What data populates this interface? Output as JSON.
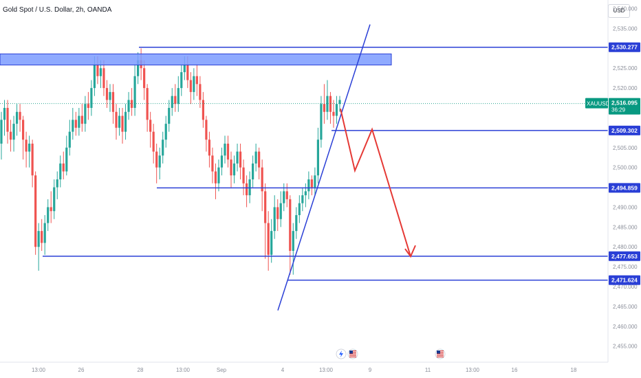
{
  "header": {
    "title": "Gold Spot / U.S. Dollar, 2h, OANDA",
    "currency_button": "USD"
  },
  "colors": {
    "up": "#26a69a",
    "down": "#ef5350",
    "line_blue": "#2a3fd6",
    "zone_fill": "#7b9bff",
    "arrow_red": "#e53935",
    "axis_text": "#8a8e99",
    "current_price_badge": "#089981"
  },
  "chart_data": {
    "type": "candlestick",
    "symbol": "XAUUSD",
    "timeframe": "2h",
    "ylim": [
      2452,
      2542
    ],
    "y_ticks": [
      "2,540.000",
      "2,535.000",
      "2,530.000",
      "2,525.000",
      "2,520.000",
      "2,515.000",
      "2,510.000",
      "2,505.000",
      "2,500.000",
      "2,495.000",
      "2,490.000",
      "2,485.000",
      "2,480.000",
      "2,475.000",
      "2,470.000",
      "2,465.000",
      "2,460.000",
      "2,455.000"
    ],
    "x_ticks": [
      "13:00",
      "26",
      "28",
      "13:00",
      "Sep",
      "4",
      "13:00",
      "9",
      "11",
      "13:00",
      "16",
      "18"
    ],
    "current_price": {
      "symbol": "XAUUSD",
      "price": "2,516.095",
      "countdown": "36:29"
    },
    "levels": [
      {
        "label": "2,530.277",
        "price": 2530.277
      },
      {
        "label": "2,509.302",
        "price": 2509.302
      },
      {
        "label": "2,494.859",
        "price": 2494.859
      },
      {
        "label": "2,477.653",
        "price": 2477.653
      },
      {
        "label": "2,471.624",
        "price": 2471.624
      }
    ],
    "resistance_zone": [
      2525.8,
      2528.6
    ],
    "trendline": {
      "from": 2464,
      "to": 2536
    },
    "projection_path": [
      2514.8,
      2499.2,
      2509.6,
      2477.6
    ],
    "event_icons": [
      "lightning-event",
      "us-flag-event",
      "us-flag-event"
    ],
    "candles": [
      [
        2506,
        2512,
        2502,
        2514
      ],
      [
        2512,
        2515,
        2508,
        2517
      ],
      [
        2515,
        2509,
        2506,
        2517
      ],
      [
        2509,
        2507,
        2504,
        2512
      ],
      [
        2507,
        2511,
        2504,
        2513
      ],
      [
        2511,
        2514,
        2508,
        2516
      ],
      [
        2514,
        2512,
        2509,
        2516
      ],
      [
        2512,
        2507,
        2502,
        2513
      ],
      [
        2507,
        2504,
        2500,
        2509
      ],
      [
        2504,
        2506,
        2500,
        2508
      ],
      [
        2506,
        2498,
        2495,
        2507
      ],
      [
        2498,
        2480,
        2478,
        2499
      ],
      [
        2480,
        2484,
        2474,
        2486
      ],
      [
        2484,
        2481,
        2479,
        2487
      ],
      [
        2481,
        2486,
        2478,
        2488
      ],
      [
        2486,
        2490,
        2484,
        2492
      ],
      [
        2490,
        2489,
        2486,
        2494
      ],
      [
        2489,
        2495,
        2487,
        2497
      ],
      [
        2495,
        2497,
        2492,
        2499
      ],
      [
        2497,
        2501,
        2495,
        2503
      ],
      [
        2501,
        2499,
        2497,
        2504
      ],
      [
        2499,
        2505,
        2498,
        2508
      ],
      [
        2505,
        2509,
        2503,
        2512
      ],
      [
        2509,
        2512,
        2507,
        2515
      ],
      [
        2512,
        2510,
        2508,
        2514
      ],
      [
        2510,
        2513,
        2508,
        2515
      ],
      [
        2513,
        2511,
        2509,
        2516
      ],
      [
        2511,
        2516,
        2509,
        2518
      ],
      [
        2516,
        2515,
        2512,
        2519
      ],
      [
        2515,
        2520,
        2513,
        2522
      ],
      [
        2520,
        2526,
        2518,
        2528
      ],
      [
        2526,
        2523,
        2521,
        2528
      ],
      [
        2523,
        2525,
        2520,
        2527
      ],
      [
        2525,
        2520,
        2518,
        2527
      ],
      [
        2520,
        2517,
        2515,
        2522
      ],
      [
        2517,
        2519,
        2514,
        2521
      ],
      [
        2519,
        2514,
        2511,
        2521
      ],
      [
        2514,
        2510,
        2507,
        2516
      ],
      [
        2510,
        2513,
        2508,
        2515
      ],
      [
        2513,
        2509,
        2506,
        2515
      ],
      [
        2509,
        2514,
        2507,
        2516
      ],
      [
        2514,
        2517,
        2512,
        2519
      ],
      [
        2517,
        2515,
        2513,
        2520
      ],
      [
        2515,
        2523,
        2513,
        2526
      ],
      [
        2523,
        2527,
        2521,
        2529
      ],
      [
        2527,
        2525,
        2522,
        2530
      ],
      [
        2525,
        2520,
        2517,
        2527
      ],
      [
        2520,
        2512,
        2509,
        2521
      ],
      [
        2512,
        2509,
        2505,
        2514
      ],
      [
        2509,
        2504,
        2501,
        2511
      ],
      [
        2504,
        2500,
        2496,
        2506
      ],
      [
        2500,
        2503,
        2497,
        2505
      ],
      [
        2503,
        2507,
        2501,
        2509
      ],
      [
        2507,
        2511,
        2505,
        2513
      ],
      [
        2511,
        2515,
        2509,
        2517
      ],
      [
        2515,
        2518,
        2513,
        2520
      ],
      [
        2518,
        2516,
        2514,
        2521
      ],
      [
        2516,
        2520,
        2514,
        2523
      ],
      [
        2520,
        2524,
        2518,
        2526
      ],
      [
        2524,
        2526,
        2522,
        2528
      ],
      [
        2526,
        2522,
        2520,
        2528
      ],
      [
        2522,
        2519,
        2516,
        2524
      ],
      [
        2519,
        2523,
        2517,
        2525
      ],
      [
        2523,
        2521,
        2518,
        2526
      ],
      [
        2521,
        2517,
        2515,
        2523
      ],
      [
        2517,
        2512,
        2510,
        2519
      ],
      [
        2512,
        2507,
        2504,
        2513
      ],
      [
        2507,
        2503,
        2500,
        2509
      ],
      [
        2503,
        2499,
        2496,
        2505
      ],
      [
        2499,
        2496,
        2492,
        2501
      ],
      [
        2496,
        2500,
        2494,
        2502
      ],
      [
        2500,
        2503,
        2498,
        2505
      ],
      [
        2503,
        2506,
        2501,
        2508
      ],
      [
        2506,
        2502,
        2500,
        2508
      ],
      [
        2502,
        2498,
        2495,
        2504
      ],
      [
        2498,
        2501,
        2496,
        2503
      ],
      [
        2501,
        2504,
        2499,
        2506
      ],
      [
        2504,
        2500,
        2497,
        2506
      ],
      [
        2500,
        2496,
        2493,
        2502
      ],
      [
        2496,
        2493,
        2490,
        2498
      ],
      [
        2493,
        2497,
        2491,
        2499
      ],
      [
        2497,
        2501,
        2495,
        2503
      ],
      [
        2501,
        2504,
        2499,
        2506
      ],
      [
        2504,
        2500,
        2497,
        2505
      ],
      [
        2500,
        2494,
        2489,
        2502
      ],
      [
        2494,
        2486,
        2477,
        2496
      ],
      [
        2486,
        2478,
        2474,
        2489
      ],
      [
        2478,
        2484,
        2476,
        2487
      ],
      [
        2484,
        2490,
        2482,
        2493
      ],
      [
        2490,
        2487,
        2484,
        2492
      ],
      [
        2487,
        2491,
        2485,
        2494
      ],
      [
        2491,
        2494,
        2489,
        2496
      ],
      [
        2494,
        2492,
        2490,
        2496
      ],
      [
        2492,
        2479,
        2473,
        2493
      ],
      [
        2479,
        2484,
        2473,
        2486
      ],
      [
        2484,
        2488,
        2482,
        2490
      ],
      [
        2488,
        2491,
        2486,
        2493
      ],
      [
        2491,
        2493,
        2489,
        2495
      ],
      [
        2493,
        2494,
        2490,
        2496
      ],
      [
        2494,
        2497,
        2492,
        2499
      ],
      [
        2497,
        2495,
        2493,
        2498
      ],
      [
        2495,
        2498,
        2493,
        2500
      ],
      [
        2498,
        2507,
        2496,
        2510
      ],
      [
        2507,
        2516,
        2505,
        2518
      ],
      [
        2516,
        2514,
        2511,
        2521
      ],
      [
        2514,
        2518,
        2512,
        2522
      ],
      [
        2518,
        2514,
        2511,
        2519
      ],
      [
        2514,
        2513,
        2510,
        2517
      ],
      [
        2513,
        2516,
        2511,
        2518
      ],
      [
        2516,
        2517,
        2514,
        2518
      ]
    ]
  }
}
